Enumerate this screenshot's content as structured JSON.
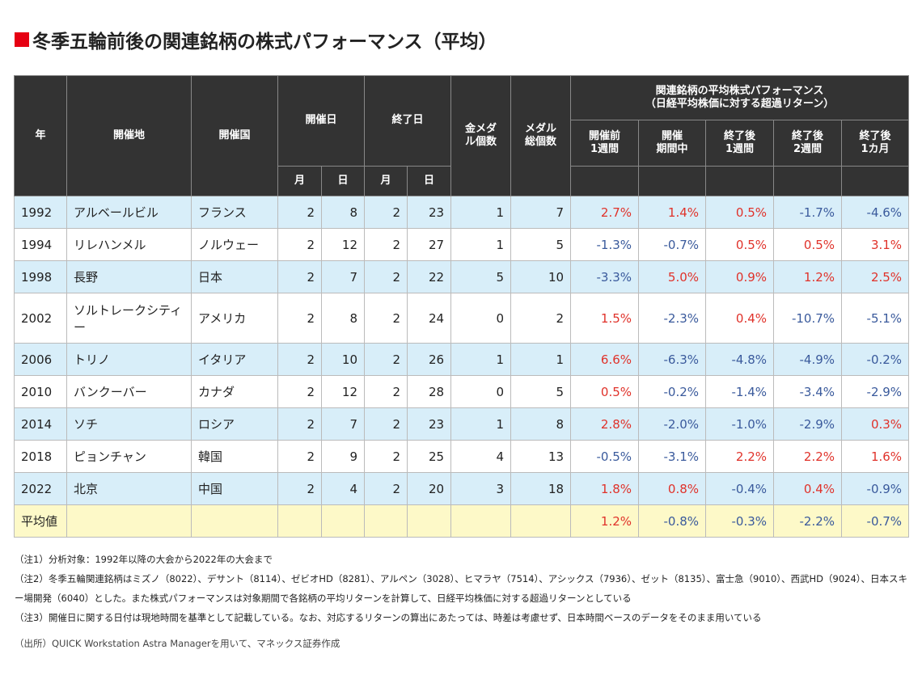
{
  "title": "冬季五輪前後の関連銘柄の株式パフォーマンス（平均）",
  "colors": {
    "positive": "#e0322a",
    "negative": "#3a5a9c",
    "header": "#333333",
    "row_alt": "#d8eef9",
    "avg_row": "#fdf9c8",
    "title_marker": "#e60012"
  },
  "headers": {
    "year": "年",
    "venue": "開催地",
    "country": "開催国",
    "start": "開催日",
    "end": "終了日",
    "month": "月",
    "day": "日",
    "gold": "金メダル個数",
    "total": "メダル総個数",
    "perf_group": "関連銘柄の平均株式パフォーマンス",
    "perf_sub": "（日経平均株価に対する超過リターン）",
    "perf_cols": [
      "開催前\n1週間",
      "開催\n期間中",
      "終了後\n1週間",
      "終了後\n2週間",
      "終了後\n1カ月"
    ]
  },
  "rows": [
    {
      "year": "1992",
      "venue": "アルベールビル",
      "country": "フランス",
      "sm": "2",
      "sd": "8",
      "em": "2",
      "ed": "23",
      "gold": "1",
      "total": "7",
      "perf": [
        "2.7%",
        "1.4%",
        "0.5%",
        "-1.7%",
        "-4.6%"
      ]
    },
    {
      "year": "1994",
      "venue": "リレハンメル",
      "country": "ノルウェー",
      "sm": "2",
      "sd": "12",
      "em": "2",
      "ed": "27",
      "gold": "1",
      "total": "5",
      "perf": [
        "-1.3%",
        "-0.7%",
        "0.5%",
        "0.5%",
        "3.1%"
      ]
    },
    {
      "year": "1998",
      "venue": "長野",
      "country": "日本",
      "sm": "2",
      "sd": "7",
      "em": "2",
      "ed": "22",
      "gold": "5",
      "total": "10",
      "perf": [
        "-3.3%",
        "5.0%",
        "0.9%",
        "1.2%",
        "2.5%"
      ]
    },
    {
      "year": "2002",
      "venue": "ソルトレークシティー",
      "country": "アメリカ",
      "sm": "2",
      "sd": "8",
      "em": "2",
      "ed": "24",
      "gold": "0",
      "total": "2",
      "perf": [
        "1.5%",
        "-2.3%",
        "0.4%",
        "-10.7%",
        "-5.1%"
      ]
    },
    {
      "year": "2006",
      "venue": "トリノ",
      "country": "イタリア",
      "sm": "2",
      "sd": "10",
      "em": "2",
      "ed": "26",
      "gold": "1",
      "total": "1",
      "perf": [
        "6.6%",
        "-6.3%",
        "-4.8%",
        "-4.9%",
        "-0.2%"
      ]
    },
    {
      "year": "2010",
      "venue": "バンクーバー",
      "country": "カナダ",
      "sm": "2",
      "sd": "12",
      "em": "2",
      "ed": "28",
      "gold": "0",
      "total": "5",
      "perf": [
        "0.5%",
        "-0.2%",
        "-1.4%",
        "-3.4%",
        "-2.9%"
      ]
    },
    {
      "year": "2014",
      "venue": "ソチ",
      "country": "ロシア",
      "sm": "2",
      "sd": "7",
      "em": "2",
      "ed": "23",
      "gold": "1",
      "total": "8",
      "perf": [
        "2.8%",
        "-2.0%",
        "-1.0%",
        "-2.9%",
        "0.3%"
      ]
    },
    {
      "year": "2018",
      "venue": "ピョンチャン",
      "country": "韓国",
      "sm": "2",
      "sd": "9",
      "em": "2",
      "ed": "25",
      "gold": "4",
      "total": "13",
      "perf": [
        "-0.5%",
        "-3.1%",
        "2.2%",
        "2.2%",
        "1.6%"
      ]
    },
    {
      "year": "2022",
      "venue": "北京",
      "country": "中国",
      "sm": "2",
      "sd": "4",
      "em": "2",
      "ed": "20",
      "gold": "3",
      "total": "18",
      "perf": [
        "1.8%",
        "0.8%",
        "-0.4%",
        "0.4%",
        "-0.9%"
      ]
    }
  ],
  "average": {
    "label": "平均値",
    "perf": [
      "1.2%",
      "-0.8%",
      "-0.3%",
      "-2.2%",
      "-0.7%"
    ]
  },
  "notes": [
    "（注1）分析対象：1992年以降の大会から2022年の大会まで",
    "（注2）冬季五輪関連銘柄はミズノ（8022）、デサント（8114）、ゼビオHD（8281）、アルペン（3028）、ヒマラヤ（7514）、アシックス（7936）、ゼット（8135）、富士急（9010）、西武HD（9024）、日本スキー場開発（6040）とした。また株式パフォーマンスは対象期間で各銘柄の平均リターンを計算して、日経平均株価に対する超過リターンとしている",
    "（注3）開催日に関する日付は現地時間を基準として記載している。なお、対応するリターンの算出にあたっては、時差は考慮せず、日本時間ベースのデータをそのまま用いている"
  ],
  "source": "（出所）QUICK Workstation Astra Managerを用いて、マネックス証券作成"
}
